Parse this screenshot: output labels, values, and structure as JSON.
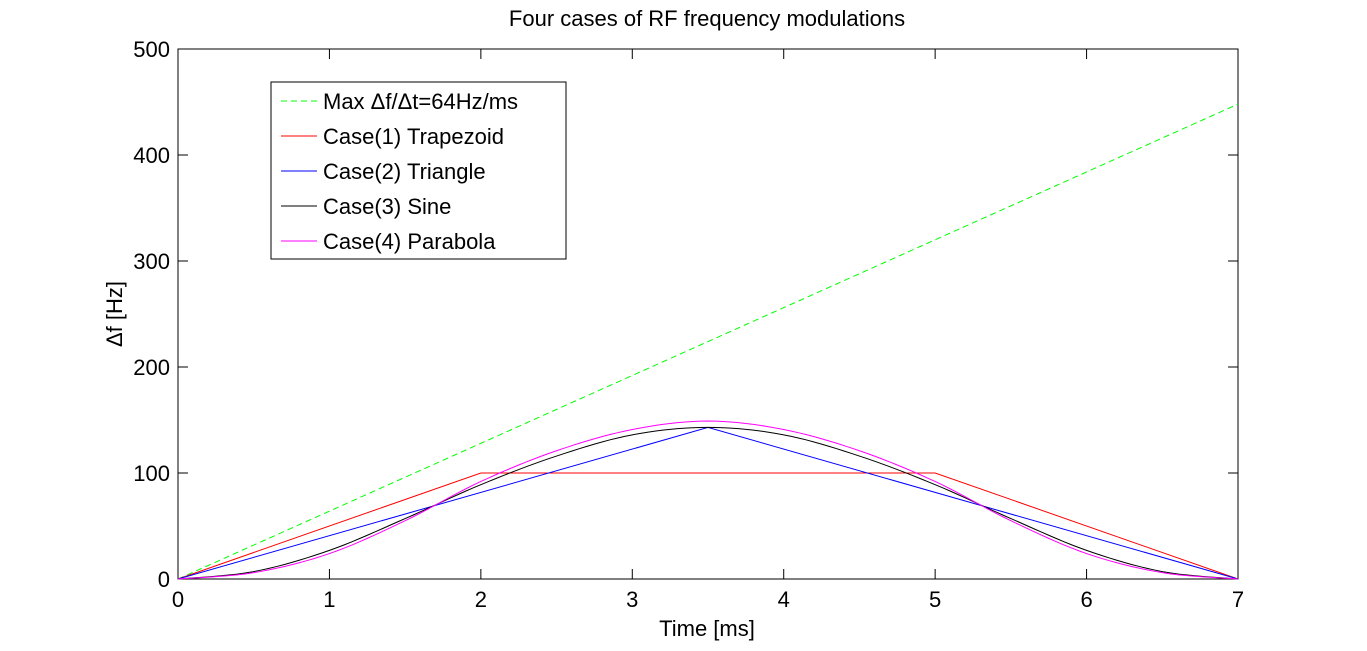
{
  "chart_data": {
    "type": "line",
    "title": "Four cases of RF frequency modulations",
    "xlabel": "Time [ms]",
    "ylabel": "Δf [Hz]",
    "xlim": [
      0,
      7
    ],
    "ylim": [
      0,
      500
    ],
    "xticks": [
      0,
      1,
      2,
      3,
      4,
      5,
      6,
      7
    ],
    "yticks": [
      0,
      100,
      200,
      300,
      400,
      500
    ],
    "grid": false,
    "legend_position": "top-left",
    "series": [
      {
        "name": "Max Δf/Δt=64Hz/ms",
        "color": "#00ff00",
        "style": "dashed",
        "x": [
          0,
          7
        ],
        "y": [
          0,
          448
        ]
      },
      {
        "name": "Case(1) Trapezoid",
        "color": "#ff0000",
        "style": "solid",
        "x": [
          0,
          2,
          5,
          7
        ],
        "y": [
          0,
          100,
          100,
          0
        ]
      },
      {
        "name": "Case(2) Triangle",
        "color": "#0000ff",
        "style": "solid",
        "x": [
          0,
          3.5,
          7
        ],
        "y": [
          0,
          143,
          0
        ]
      },
      {
        "name": "Case(3) Sine",
        "color": "#000000",
        "style": "solid",
        "x": [
          0,
          0.5,
          1,
          1.5,
          2,
          2.5,
          3,
          3.5,
          4,
          4.5,
          5,
          5.5,
          6,
          6.5,
          7
        ],
        "y": [
          0,
          7,
          27,
          57,
          89,
          116,
          136,
          143,
          136,
          116,
          89,
          57,
          27,
          7,
          0
        ]
      },
      {
        "name": "Case(4) Parabola",
        "color": "#ff00ff",
        "style": "solid",
        "x": [
          0,
          0.5,
          1,
          1.5,
          2,
          2.5,
          3,
          3.5,
          4,
          4.5,
          5,
          5.5,
          6,
          6.5,
          7
        ],
        "y": [
          0,
          6,
          24,
          55,
          92,
          121,
          141,
          149,
          141,
          121,
          92,
          55,
          24,
          6,
          0
        ]
      }
    ]
  }
}
